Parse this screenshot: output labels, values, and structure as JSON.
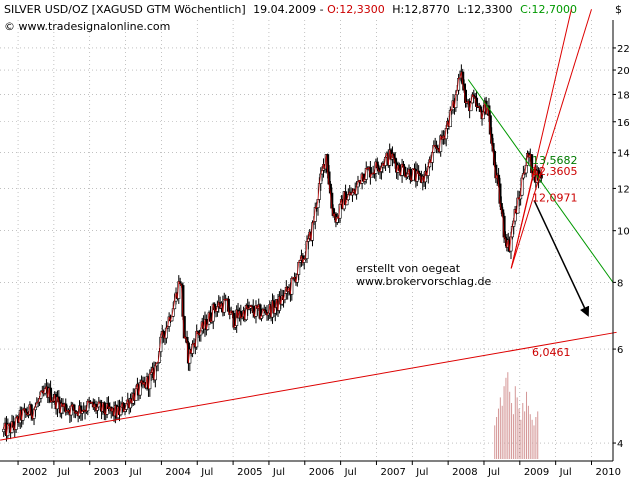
{
  "chart_data": {
    "type": "candlestick",
    "header": {
      "instrument": "SILVER USD/OZ [XAGUSD GTM  Wöchentlich]",
      "date": "19.04.2009",
      "open_label": "O:12,3300",
      "high_label": "H:12,8770",
      "low_label": "L:12,3300",
      "close_label": "C:12,7000",
      "copyright": "© www.tradesignalonline.com"
    },
    "currency_label": "$",
    "y_axis": {
      "scale": "log",
      "min": 3.75,
      "max": 24.5,
      "ticks": [
        4,
        6,
        8,
        10,
        12,
        14,
        16,
        18,
        20,
        22
      ]
    },
    "x_axis": {
      "ticks": [
        {
          "label": "2002",
          "t": 2002.0
        },
        {
          "label": "Jul",
          "t": 2002.5
        },
        {
          "label": "2003",
          "t": 2003.0
        },
        {
          "label": "Jul",
          "t": 2003.5
        },
        {
          "label": "2004",
          "t": 2004.0
        },
        {
          "label": "Jul",
          "t": 2004.5
        },
        {
          "label": "2005",
          "t": 2005.0
        },
        {
          "label": "Jul",
          "t": 2005.5
        },
        {
          "label": "2006",
          "t": 2006.0
        },
        {
          "label": "Jul",
          "t": 2006.5
        },
        {
          "label": "2007",
          "t": 2007.0
        },
        {
          "label": "Jul",
          "t": 2007.5
        },
        {
          "label": "2008",
          "t": 2008.0
        },
        {
          "label": "Jul",
          "t": 2008.5
        },
        {
          "label": "2009",
          "t": 2009.0
        },
        {
          "label": "Jul",
          "t": 2009.5
        },
        {
          "label": "2010",
          "t": 2010.0
        }
      ]
    },
    "price_path": [
      [
        2001.8,
        4.2
      ],
      [
        2001.95,
        4.3
      ],
      [
        2002.05,
        4.5
      ],
      [
        2002.2,
        4.6
      ],
      [
        2002.4,
        5.0
      ],
      [
        2002.6,
        4.7
      ],
      [
        2002.8,
        4.6
      ],
      [
        2003.0,
        4.7
      ],
      [
        2003.2,
        4.6
      ],
      [
        2003.4,
        4.55
      ],
      [
        2003.6,
        4.9
      ],
      [
        2003.75,
        5.1
      ],
      [
        2003.9,
        5.4
      ],
      [
        2004.0,
        6.2
      ],
      [
        2004.1,
        6.8
      ],
      [
        2004.2,
        7.5
      ],
      [
        2004.27,
        8.2
      ],
      [
        2004.32,
        6.3
      ],
      [
        2004.38,
        5.8
      ],
      [
        2004.5,
        6.4
      ],
      [
        2004.6,
        6.6
      ],
      [
        2004.75,
        7.2
      ],
      [
        2004.9,
        7.3
      ],
      [
        2005.0,
        6.8
      ],
      [
        2005.2,
        7.1
      ],
      [
        2005.4,
        7.0
      ],
      [
        2005.6,
        7.2
      ],
      [
        2005.8,
        7.8
      ],
      [
        2006.0,
        9.0
      ],
      [
        2006.1,
        10.0
      ],
      [
        2006.2,
        12.0
      ],
      [
        2006.3,
        13.9
      ],
      [
        2006.38,
        11.0
      ],
      [
        2006.45,
        10.5
      ],
      [
        2006.55,
        11.5
      ],
      [
        2006.7,
        11.8
      ],
      [
        2006.8,
        12.8
      ],
      [
        2006.95,
        13.0
      ],
      [
        2007.1,
        13.5
      ],
      [
        2007.2,
        13.8
      ],
      [
        2007.3,
        13.2
      ],
      [
        2007.4,
        13.0
      ],
      [
        2007.5,
        12.8
      ],
      [
        2007.6,
        12.4
      ],
      [
        2007.7,
        12.8
      ],
      [
        2007.8,
        14.0
      ],
      [
        2007.9,
        14.6
      ],
      [
        2008.0,
        16.0
      ],
      [
        2008.1,
        17.5
      ],
      [
        2008.18,
        20.5
      ],
      [
        2008.25,
        17.0
      ],
      [
        2008.35,
        17.5
      ],
      [
        2008.45,
        16.5
      ],
      [
        2008.55,
        17.3
      ],
      [
        2008.62,
        14.0
      ],
      [
        2008.72,
        11.5
      ],
      [
        2008.78,
        10.0
      ],
      [
        2008.85,
        9.3
      ],
      [
        2008.9,
        10.2
      ],
      [
        2008.95,
        11.0
      ],
      [
        2009.0,
        11.5
      ],
      [
        2009.05,
        13.0
      ],
      [
        2009.12,
        13.8
      ],
      [
        2009.2,
        12.8
      ],
      [
        2009.28,
        12.6
      ],
      [
        2009.3,
        12.7
      ]
    ],
    "volume": {
      "start": 2008.65,
      "end": 2009.25,
      "values": [
        60,
        75,
        90,
        110,
        95,
        130,
        145,
        155,
        120,
        100,
        80,
        130,
        110,
        90,
        70,
        100,
        85,
        120,
        95,
        80,
        70,
        60,
        75,
        85
      ]
    },
    "trendlines": [
      {
        "name": "long-support",
        "color": "#dd0000",
        "width": 1,
        "points": [
          [
            2001.75,
            4.05
          ],
          [
            2010.35,
            6.45
          ]
        ]
      },
      {
        "name": "down-channel",
        "color": "#009900",
        "width": 1,
        "points": [
          [
            2008.28,
            19.2
          ],
          [
            2010.3,
            8.0
          ]
        ]
      },
      {
        "name": "fan-steep",
        "color": "#dd0000",
        "width": 1,
        "points": [
          [
            2008.88,
            8.5
          ],
          [
            2009.72,
            26.0
          ]
        ]
      },
      {
        "name": "fan-mid",
        "color": "#dd0000",
        "width": 1,
        "points": [
          [
            2008.88,
            8.5
          ],
          [
            2010.0,
            26.0
          ]
        ]
      },
      {
        "name": "fan-low",
        "color": "#dd0000",
        "width": 1,
        "points": [
          [
            2008.88,
            8.5
          ],
          [
            2009.2,
            12.9
          ]
        ]
      },
      {
        "name": "projection-arrow",
        "color": "#000000",
        "width": 1.5,
        "arrow": true,
        "points": [
          [
            2009.2,
            11.4
          ],
          [
            2009.95,
            6.95
          ]
        ]
      }
    ],
    "annotations": [
      {
        "label": "13,5682",
        "color": "#007a00",
        "t": 2009.17,
        "y": 13.57
      },
      {
        "label": "12,3605",
        "color": "#cc0000",
        "t": 2009.17,
        "y": 12.95
      },
      {
        "label": "12,0971",
        "color": "#cc0000",
        "t": 2009.17,
        "y": 11.55
      },
      {
        "label": "6,0461",
        "color": "#cc0000",
        "t": 2009.17,
        "y": 5.92
      }
    ],
    "credit": {
      "line1": "erstellt von oegeat",
      "line2": "www.brokervorschlag.de"
    },
    "colors": {
      "up_body": "#ffffff",
      "down_body": "#000000",
      "price_line": "#d40000",
      "grid": "#9c9c9c",
      "volume": "#d49696"
    }
  }
}
